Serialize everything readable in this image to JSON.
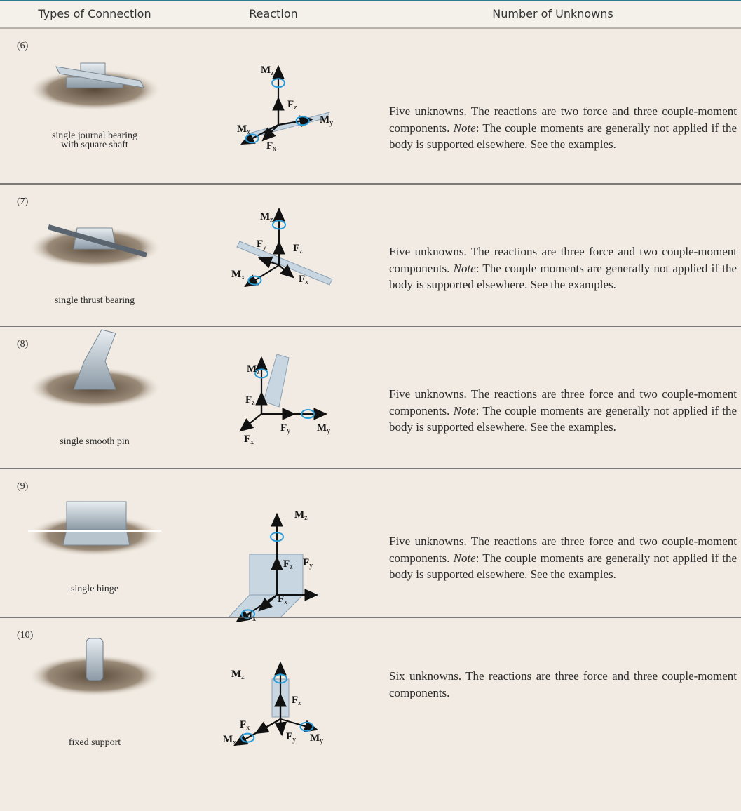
{
  "header": {
    "columns": [
      "Types of Connection",
      "Reaction",
      "Number of Unknowns"
    ]
  },
  "rows": [
    {
      "number": "(6)",
      "caption": [
        "single journal bearing",
        "with square shaft"
      ],
      "reactions": [
        [
          "M",
          "z"
        ],
        [
          "F",
          "z"
        ],
        [
          "M",
          "y"
        ],
        [
          "M",
          "x"
        ],
        [
          "F",
          "x"
        ]
      ],
      "description": [
        "Five unknowns. The reactions are two force and three couple-moment components. ",
        "Note",
        ": The couple moments are generally not applied if the body is supported elsewhere. See the examples."
      ]
    },
    {
      "number": "(7)",
      "caption": [
        "single thrust bearing"
      ],
      "reactions": [
        [
          "M",
          "z"
        ],
        [
          "F",
          "z"
        ],
        [
          "F",
          "y"
        ],
        [
          "M",
          "x"
        ],
        [
          "F",
          "x"
        ]
      ],
      "description": [
        "Five unknowns. The reactions are three force and two couple-moment components. ",
        "Note",
        ": The couple moments are generally not applied if the body is supported elsewhere. See the examples."
      ]
    },
    {
      "number": "(8)",
      "caption": [
        "single smooth pin"
      ],
      "reactions": [
        [
          "M",
          "z"
        ],
        [
          "F",
          "z"
        ],
        [
          "F",
          "y"
        ],
        [
          "M",
          "y"
        ],
        [
          "F",
          "x"
        ]
      ],
      "description": [
        "Five unknowns. The reactions are three force and two couple-moment components. ",
        "Note",
        ": The couple moments are generally not applied if the body is supported elsewhere. See the examples."
      ]
    },
    {
      "number": "(9)",
      "caption": [
        "single hinge"
      ],
      "reactions": [
        [
          "M",
          "z"
        ],
        [
          "F",
          "z"
        ],
        [
          "F",
          "y"
        ],
        [
          "F",
          "x"
        ],
        [
          "M",
          "x"
        ]
      ],
      "description": [
        "Five unknowns. The reactions are three force and two couple-moment components. ",
        "Note",
        ": The couple moments are generally not applied if the body is supported elsewhere. See the examples."
      ]
    },
    {
      "number": "(10)",
      "caption": [
        "fixed support"
      ],
      "reactions": [
        [
          "M",
          "z"
        ],
        [
          "F",
          "z"
        ],
        [
          "F",
          "x"
        ],
        [
          "M",
          "x"
        ],
        [
          "F",
          "y"
        ],
        [
          "M",
          "y"
        ]
      ],
      "description": [
        "Six unknowns. The reactions are three force and three couple-moment components."
      ]
    }
  ]
}
